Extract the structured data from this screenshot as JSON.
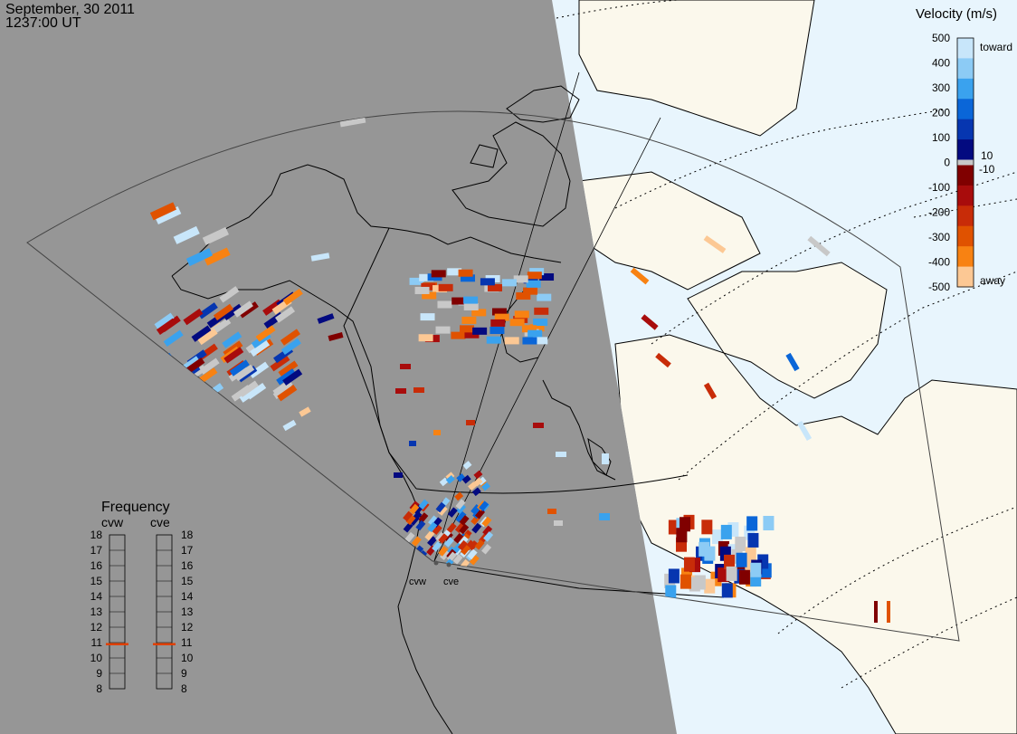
{
  "header": {
    "date": "September, 30 2011",
    "time": "1237:00 UT"
  },
  "velocity_scale": {
    "title": "Velocity (m/s)",
    "toward_label": "toward",
    "away_label": "away",
    "ticks_left": [
      "500",
      "400",
      "300",
      "200",
      "100",
      "0",
      "-100",
      "-200",
      "-300",
      "-400",
      "-500"
    ],
    "ticks_right_pos": "10",
    "ticks_right_neg": "-10",
    "colors_toward": [
      "#c8e6fa",
      "#8ccbf5",
      "#3aa2ee",
      "#0a66d8",
      "#0636b0",
      "#030a80"
    ],
    "colors_away": [
      "#800000",
      "#a80c0c",
      "#c82c08",
      "#e05200",
      "#f88212",
      "#fcc894"
    ],
    "ground_scatter_color": "#c8c8c8"
  },
  "frequency_panel": {
    "title": "Frequency",
    "radar_labels": [
      "cvw",
      "cve"
    ],
    "scale_ticks": [
      "18",
      "17",
      "16",
      "15",
      "14",
      "13",
      "12",
      "11",
      "10",
      "9",
      "8"
    ],
    "min_mhz": 8,
    "max_mhz": 18,
    "cvw_mhz": 10.9,
    "cve_mhz": 10.9,
    "marker_color": "#e04000"
  },
  "map": {
    "night_color": "#969696",
    "day_land_color": "#fbf8ec",
    "day_ocean_color": "#e8f5fd",
    "radar_sites": [
      "cvw",
      "cve"
    ]
  }
}
